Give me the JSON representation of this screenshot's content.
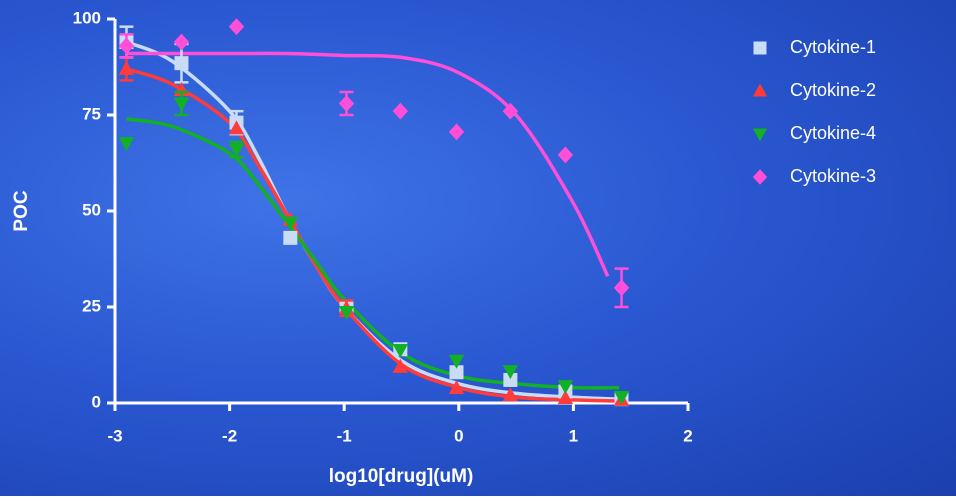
{
  "chart_data": {
    "type": "scatter",
    "x_label": "log10[drug](uM)",
    "y_label": "POC",
    "xlim": [
      -3,
      2
    ],
    "xticks": [
      -3,
      -2,
      -1,
      0,
      1,
      2
    ],
    "ylim": [
      0,
      100
    ],
    "yticks": [
      0,
      25,
      50,
      75,
      100
    ],
    "grid": false,
    "legend": "right",
    "x": [
      -2.9,
      -2.42,
      -1.94,
      -1.47,
      -0.98,
      -0.51,
      -0.02,
      0.45,
      0.93,
      1.42
    ],
    "series": [
      {
        "name": "Cytokine-1",
        "color": "#c8dcf5",
        "marker": "square",
        "values": [
          94,
          88.5,
          73,
          43,
          25,
          14,
          8,
          6,
          3,
          1
        ],
        "errors": [
          4,
          5,
          3,
          null,
          null,
          null,
          null,
          null,
          null,
          null
        ],
        "fit_x": [
          -2.9,
          -2.5,
          -2,
          -1.75,
          -1.5,
          -1.25,
          -1,
          -0.5,
          0,
          0.5,
          1,
          1.4
        ],
        "fit_values": [
          94,
          89,
          76,
          64,
          49,
          36,
          25,
          11,
          5,
          2.5,
          1.5,
          1
        ]
      },
      {
        "name": "Cytokine-2",
        "color": "#ff3b3b",
        "marker": "triangle",
        "values": [
          87,
          81.5,
          71.5,
          47.7,
          24.7,
          9.4,
          3.9,
          2,
          1.3,
          0.8
        ],
        "errors": [
          3,
          null,
          null,
          null,
          2,
          null,
          null,
          null,
          null,
          null
        ],
        "fit_x": [
          -2.9,
          -2.5,
          -2,
          -1.75,
          -1.5,
          -1.25,
          -1,
          -0.5,
          0,
          0.5,
          1,
          1.4
        ],
        "fit_values": [
          87,
          83,
          73,
          62,
          49,
          36,
          25,
          10,
          4,
          1.5,
          0.8,
          0.5
        ]
      },
      {
        "name": "Cytokine-4",
        "color": "#12b024",
        "marker": "triangle-down",
        "values": [
          67.7,
          78,
          66,
          47,
          23.7,
          13.8,
          11,
          8.3,
          4.4,
          1.6
        ],
        "errors": [
          null,
          3,
          2,
          null,
          null,
          null,
          null,
          null,
          null,
          null
        ],
        "fit_x": [
          -2.9,
          -2.5,
          -2,
          -1.75,
          -1.5,
          -1.25,
          -1,
          -0.5,
          0,
          0.5,
          1,
          1.4
        ],
        "fit_values": [
          74,
          72,
          65,
          57,
          47,
          37,
          27,
          13,
          7,
          5,
          4,
          4
        ]
      },
      {
        "name": "Cytokine-3",
        "color": "#ff4fd8",
        "marker": "diamond",
        "values": [
          93,
          94,
          98,
          null,
          78,
          76,
          70.6,
          76,
          64.6,
          30
        ],
        "errors": [
          3,
          null,
          null,
          null,
          3,
          null,
          null,
          null,
          null,
          5
        ],
        "fit_x": [
          -2.9,
          -2.5,
          -2,
          -1.5,
          -1,
          -0.5,
          0,
          0.5,
          1,
          1.3
        ],
        "fit_values": [
          91,
          91,
          91,
          91,
          90.5,
          90,
          86,
          75,
          52,
          33
        ]
      }
    ]
  }
}
